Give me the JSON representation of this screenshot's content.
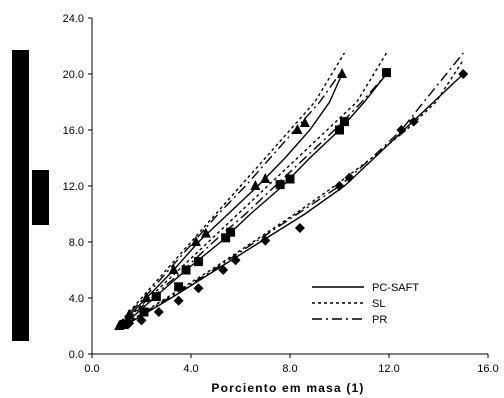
{
  "chart_data": {
    "type": "line",
    "xlabel": "Porciento em masa (1)",
    "ylabel": "",
    "xlim": [
      0.0,
      16.0
    ],
    "ylim": [
      0.0,
      24.0
    ],
    "xticks": [
      "0.0",
      "4.0",
      "8.0",
      "12.0",
      "16.0"
    ],
    "yticks": [
      "0.0",
      "4.0",
      "8.0",
      "12.0",
      "16.0",
      "20.0",
      "24.0"
    ],
    "grid": false,
    "legend_position": "bottom-right",
    "legend": [
      {
        "name": "PC-SAFT",
        "style": "solid"
      },
      {
        "name": "SL",
        "style": "dotted"
      },
      {
        "name": "PR",
        "style": "dash-dot"
      }
    ],
    "experimental": [
      {
        "marker": "triangle",
        "points": [
          [
            1.1,
            2.0
          ],
          [
            1.5,
            2.8
          ],
          [
            2.2,
            4.0
          ],
          [
            3.3,
            6.0
          ],
          [
            4.2,
            8.0
          ],
          [
            4.6,
            8.6
          ],
          [
            6.6,
            12.0
          ],
          [
            7.0,
            12.5
          ],
          [
            8.3,
            16.0
          ],
          [
            8.6,
            16.5
          ],
          [
            10.1,
            20.0
          ]
        ]
      },
      {
        "marker": "square",
        "points": [
          [
            1.3,
            2.1
          ],
          [
            2.1,
            3.0
          ],
          [
            2.6,
            4.1
          ],
          [
            3.5,
            4.8
          ],
          [
            3.8,
            6.0
          ],
          [
            4.3,
            6.6
          ],
          [
            5.4,
            8.3
          ],
          [
            5.6,
            8.7
          ],
          [
            7.6,
            12.1
          ],
          [
            8.0,
            12.5
          ],
          [
            10.0,
            16.0
          ],
          [
            10.2,
            16.6
          ],
          [
            11.9,
            20.1
          ]
        ]
      },
      {
        "marker": "diamond",
        "points": [
          [
            1.5,
            2.2
          ],
          [
            2.0,
            2.4
          ],
          [
            2.7,
            3.0
          ],
          [
            3.5,
            3.8
          ],
          [
            4.3,
            4.7
          ],
          [
            5.3,
            6.0
          ],
          [
            5.8,
            6.7
          ],
          [
            7.0,
            8.1
          ],
          [
            8.4,
            9.0
          ],
          [
            10.0,
            12.0
          ],
          [
            10.4,
            12.6
          ],
          [
            12.5,
            16.0
          ],
          [
            13.0,
            16.6
          ],
          [
            15.0,
            20.0
          ]
        ]
      }
    ],
    "series": [
      {
        "name": "PC-SAFT",
        "style": "solid",
        "segments": [
          [
            [
              1.1,
              2.0
            ],
            [
              2.2,
              4.0
            ],
            [
              3.3,
              6.0
            ],
            [
              4.3,
              8.0
            ],
            [
              5.5,
              10.0
            ],
            [
              6.7,
              12.0
            ],
            [
              7.8,
              14.0
            ],
            [
              8.8,
              16.0
            ],
            [
              9.6,
              18.0
            ],
            [
              10.1,
              20.0
            ]
          ],
          [
            [
              1.3,
              2.1
            ],
            [
              2.5,
              4.0
            ],
            [
              3.8,
              6.0
            ],
            [
              5.2,
              8.0
            ],
            [
              6.4,
              10.0
            ],
            [
              7.7,
              12.0
            ],
            [
              8.8,
              14.0
            ],
            [
              10.0,
              16.0
            ],
            [
              11.0,
              18.0
            ],
            [
              11.9,
              20.0
            ]
          ],
          [
            [
              1.5,
              2.2
            ],
            [
              3.2,
              4.0
            ],
            [
              5.0,
              6.0
            ],
            [
              6.8,
              8.0
            ],
            [
              8.6,
              10.0
            ],
            [
              10.2,
              12.0
            ],
            [
              11.4,
              14.0
            ],
            [
              12.6,
              16.0
            ],
            [
              13.8,
              18.0
            ],
            [
              15.0,
              20.0
            ]
          ]
        ]
      },
      {
        "name": "SL",
        "style": "dotted",
        "segments": [
          [
            [
              1.0,
              2.0
            ],
            [
              2.0,
              4.0
            ],
            [
              3.0,
              6.0
            ],
            [
              4.0,
              8.0
            ],
            [
              5.0,
              10.0
            ],
            [
              6.0,
              12.0
            ],
            [
              7.0,
              14.0
            ],
            [
              8.0,
              16.0
            ],
            [
              9.0,
              18.0
            ],
            [
              10.2,
              21.5
            ]
          ],
          [
            [
              1.2,
              2.1
            ],
            [
              2.3,
              4.0
            ],
            [
              3.5,
              6.0
            ],
            [
              4.7,
              8.0
            ],
            [
              5.9,
              10.0
            ],
            [
              7.1,
              12.0
            ],
            [
              8.3,
              14.0
            ],
            [
              9.5,
              16.0
            ],
            [
              10.7,
              18.0
            ],
            [
              11.9,
              21.5
            ]
          ],
          [
            [
              1.4,
              2.2
            ],
            [
              3.0,
              4.0
            ],
            [
              4.8,
              6.0
            ],
            [
              6.5,
              8.0
            ],
            [
              8.2,
              10.0
            ],
            [
              9.8,
              12.0
            ],
            [
              11.3,
              14.0
            ],
            [
              12.7,
              16.0
            ],
            [
              13.9,
              18.0
            ],
            [
              15.0,
              21.0
            ]
          ]
        ]
      },
      {
        "name": "PR",
        "style": "dash-dot",
        "segments": [
          [
            [
              1.0,
              2.0
            ],
            [
              2.1,
              4.0
            ],
            [
              3.1,
              6.0
            ],
            [
              4.1,
              8.0
            ],
            [
              5.1,
              10.0
            ],
            [
              6.2,
              12.0
            ],
            [
              7.2,
              14.0
            ],
            [
              8.2,
              16.0
            ],
            [
              9.2,
              18.0
            ],
            [
              10.0,
              20.0
            ]
          ],
          [
            [
              1.2,
              2.1
            ],
            [
              2.4,
              4.0
            ],
            [
              3.7,
              6.0
            ],
            [
              4.9,
              8.0
            ],
            [
              6.2,
              10.0
            ],
            [
              7.4,
              12.0
            ],
            [
              8.6,
              14.0
            ],
            [
              9.8,
              16.0
            ],
            [
              10.9,
              18.0
            ],
            [
              11.9,
              20.0
            ]
          ],
          [
            [
              1.4,
              2.2
            ],
            [
              3.1,
              4.0
            ],
            [
              4.9,
              6.0
            ],
            [
              6.6,
              8.0
            ],
            [
              8.3,
              10.0
            ],
            [
              10.0,
              12.0
            ],
            [
              11.3,
              14.0
            ],
            [
              12.5,
              16.0
            ],
            [
              13.4,
              18.0
            ],
            [
              15.0,
              21.5
            ]
          ]
        ]
      }
    ],
    "colors": {
      "line": "#000000",
      "marker": "#000000",
      "axis": "#000000",
      "background": "#ffffff",
      "side_bars": "#000000"
    }
  }
}
